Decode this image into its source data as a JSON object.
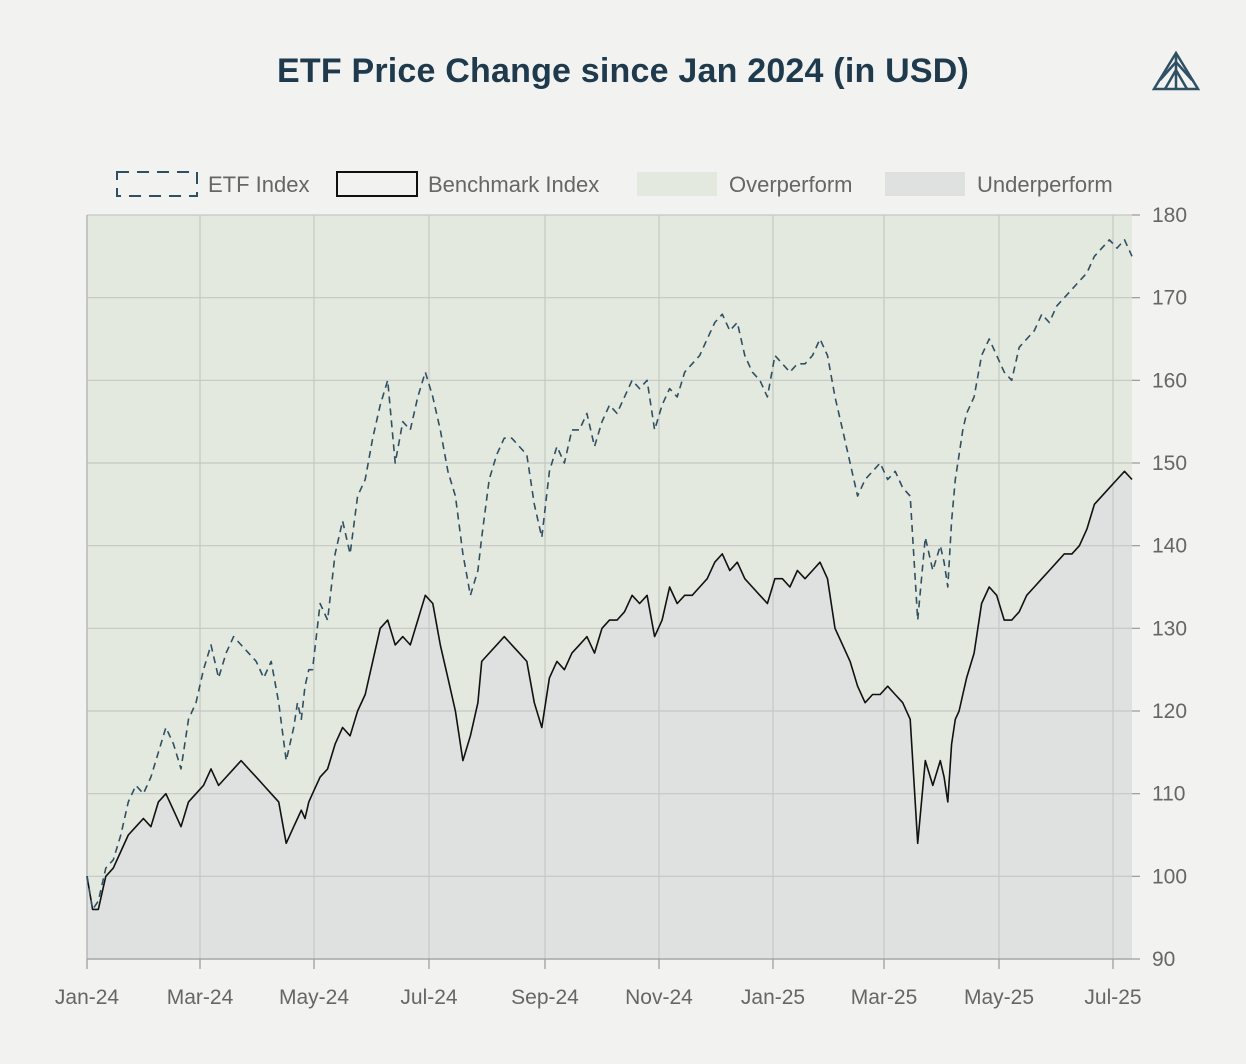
{
  "colors": {
    "etf_line": "#2f4f63",
    "benchmark_line": "#111111",
    "overperform_fill": "#e4e9df",
    "underperform_fill": "#dfe1e1",
    "grid": "#c4c8c4",
    "title": "#1e3a4c",
    "logo": "#2f4f63"
  },
  "logo_icon": "mountain-triangle-icon",
  "chart_data": {
    "type": "line",
    "title": "ETF Price Change since Jan 2024 (in USD)",
    "xlabel": "",
    "ylabel": "",
    "x_ticks": [
      "Jan-24",
      "Mar-24",
      "May-24",
      "Jul-24",
      "Sep-24",
      "Nov-24",
      "Jan-25",
      "Mar-25",
      "May-25",
      "Jul-25"
    ],
    "x_range": [
      "2024-01-01",
      "2025-07-10"
    ],
    "ylim": [
      90,
      180
    ],
    "y_ticks": [
      90,
      100,
      110,
      120,
      130,
      140,
      150,
      160,
      170,
      180
    ],
    "legend": [
      {
        "label": "ETF Index",
        "style": "dashed-line"
      },
      {
        "label": "Benchmark Index",
        "style": "solid-line"
      },
      {
        "label": "Overperform",
        "style": "fill"
      },
      {
        "label": "Underperform",
        "style": "fill"
      }
    ],
    "legend_position": "top",
    "grid": true,
    "series": [
      {
        "name": "ETF Index",
        "x": [
          0,
          3,
          6,
          10,
          14,
          18,
          22,
          26,
          30,
          34,
          38,
          42,
          46,
          50,
          54,
          58,
          62,
          66,
          70,
          74,
          78,
          82,
          86,
          90,
          94,
          98,
          102,
          106,
          110,
          112,
          114,
          116,
          118,
          120,
          124,
          128,
          132,
          136,
          140,
          144,
          148,
          152,
          156,
          160,
          164,
          168,
          172,
          176,
          180,
          184,
          188,
          192,
          196,
          200,
          204,
          208,
          210,
          214,
          218,
          222,
          226,
          230,
          234,
          238,
          242,
          246,
          250,
          254,
          258,
          262,
          266,
          270,
          274,
          278,
          282,
          286,
          290,
          294,
          298,
          302,
          306,
          310,
          314,
          318,
          322,
          326,
          330,
          334,
          338,
          342,
          346,
          350,
          354,
          358,
          362,
          366,
          370,
          374,
          378,
          382,
          386,
          390,
          394,
          398,
          402,
          406,
          410,
          414,
          418,
          422,
          426,
          430,
          434,
          438,
          442,
          446,
          450,
          454,
          456,
          458,
          460,
          462,
          464,
          466,
          468,
          472,
          476,
          480,
          484,
          488,
          492,
          496,
          500,
          504,
          508,
          512,
          516,
          520,
          524,
          528,
          532,
          536,
          540,
          544,
          548,
          552,
          556
        ],
        "values": [
          100,
          96,
          97,
          101,
          102,
          105,
          109,
          111,
          110,
          112,
          115,
          118,
          116,
          113,
          119,
          121,
          125,
          128,
          124,
          127,
          129,
          128,
          127,
          126,
          124,
          126,
          121,
          114,
          118,
          121,
          119,
          123,
          125,
          125,
          133,
          131,
          139,
          143,
          139,
          146,
          148,
          153,
          157,
          160,
          150,
          155,
          154,
          158,
          161,
          158,
          154,
          149,
          146,
          139,
          134,
          137,
          141,
          148,
          151,
          153,
          153,
          152,
          151,
          145,
          141,
          149,
          152,
          150,
          154,
          154,
          156,
          152,
          155,
          157,
          156,
          158,
          160,
          159,
          160,
          154,
          157,
          159,
          158,
          161,
          162,
          163,
          165,
          167,
          168,
          166,
          167,
          163,
          161,
          160,
          158,
          163,
          162,
          161,
          162,
          162,
          163,
          165,
          163,
          158,
          154,
          150,
          146,
          148,
          149,
          150,
          148,
          149,
          147,
          146,
          131,
          141,
          137,
          140,
          138,
          135,
          143,
          148,
          151,
          154,
          156,
          158,
          163,
          165,
          163,
          161,
          160,
          164,
          165,
          166,
          168,
          167,
          169,
          170,
          171,
          172,
          173,
          175,
          176,
          177,
          176,
          177,
          175
        ]
      },
      {
        "name": "Benchmark Index",
        "x": [
          0,
          3,
          6,
          10,
          14,
          18,
          22,
          26,
          30,
          34,
          38,
          42,
          46,
          50,
          54,
          58,
          62,
          66,
          70,
          74,
          78,
          82,
          86,
          90,
          94,
          98,
          102,
          106,
          110,
          112,
          114,
          116,
          118,
          120,
          124,
          128,
          132,
          136,
          140,
          144,
          148,
          152,
          156,
          160,
          164,
          168,
          172,
          176,
          180,
          184,
          188,
          192,
          196,
          200,
          204,
          208,
          210,
          214,
          218,
          222,
          226,
          230,
          234,
          238,
          242,
          246,
          250,
          254,
          258,
          262,
          266,
          270,
          274,
          278,
          282,
          286,
          290,
          294,
          298,
          302,
          306,
          310,
          314,
          318,
          322,
          326,
          330,
          334,
          338,
          342,
          346,
          350,
          354,
          358,
          362,
          366,
          370,
          374,
          378,
          382,
          386,
          390,
          394,
          398,
          402,
          406,
          410,
          414,
          418,
          422,
          426,
          430,
          434,
          438,
          442,
          446,
          450,
          454,
          456,
          458,
          460,
          462,
          464,
          466,
          468,
          472,
          476,
          480,
          484,
          488,
          492,
          496,
          500,
          504,
          508,
          512,
          516,
          520,
          524,
          528,
          532,
          536,
          540,
          544,
          548,
          552,
          556
        ],
        "values": [
          100,
          96,
          96,
          100,
          101,
          103,
          105,
          106,
          107,
          106,
          109,
          110,
          108,
          106,
          109,
          110,
          111,
          113,
          111,
          112,
          113,
          114,
          113,
          112,
          111,
          110,
          109,
          104,
          106,
          107,
          108,
          107,
          109,
          110,
          112,
          113,
          116,
          118,
          117,
          120,
          122,
          126,
          130,
          131,
          128,
          129,
          128,
          131,
          134,
          133,
          128,
          124,
          120,
          114,
          117,
          121,
          126,
          127,
          128,
          129,
          128,
          127,
          126,
          121,
          118,
          124,
          126,
          125,
          127,
          128,
          129,
          127,
          130,
          131,
          131,
          132,
          134,
          133,
          134,
          129,
          131,
          135,
          133,
          134,
          134,
          135,
          136,
          138,
          139,
          137,
          138,
          136,
          135,
          134,
          133,
          136,
          136,
          135,
          137,
          136,
          137,
          138,
          136,
          130,
          128,
          126,
          123,
          121,
          122,
          122,
          123,
          122,
          121,
          119,
          104,
          114,
          111,
          114,
          112,
          109,
          116,
          119,
          120,
          122,
          124,
          127,
          133,
          135,
          134,
          131,
          131,
          132,
          134,
          135,
          136,
          137,
          138,
          139,
          139,
          140,
          142,
          145,
          146,
          147,
          148,
          149,
          148
        ]
      }
    ]
  }
}
